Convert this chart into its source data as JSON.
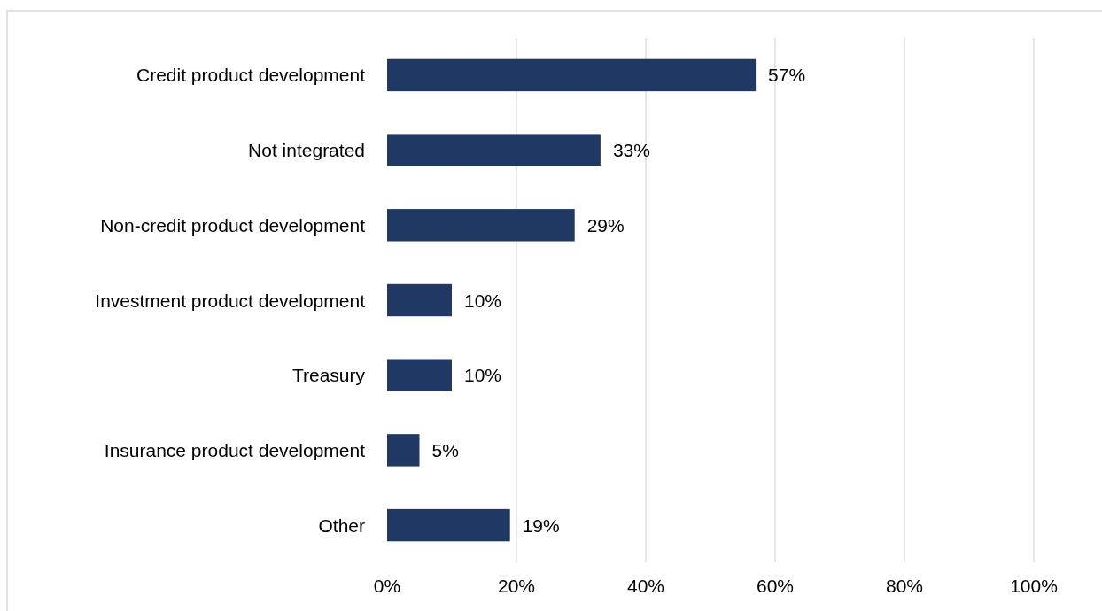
{
  "chart_data": {
    "type": "bar",
    "orientation": "horizontal",
    "categories": [
      "Credit product development",
      "Not integrated",
      "Non-credit product development",
      "Investment product development",
      "Treasury",
      "Insurance product development",
      "Other"
    ],
    "values": [
      57,
      33,
      29,
      10,
      10,
      5,
      19
    ],
    "value_labels": [
      "57%",
      "33%",
      "29%",
      "10%",
      "10%",
      "5%",
      "19%"
    ],
    "color": "#203864",
    "xlim": [
      0,
      100
    ],
    "xticks": [
      {
        "value": 0,
        "label": "0%"
      },
      {
        "value": 20,
        "label": "20%"
      },
      {
        "value": 40,
        "label": "40%"
      },
      {
        "value": 60,
        "label": "60%"
      },
      {
        "value": 80,
        "label": "80%"
      },
      {
        "value": 100,
        "label": "100%"
      }
    ],
    "grid": "x"
  }
}
